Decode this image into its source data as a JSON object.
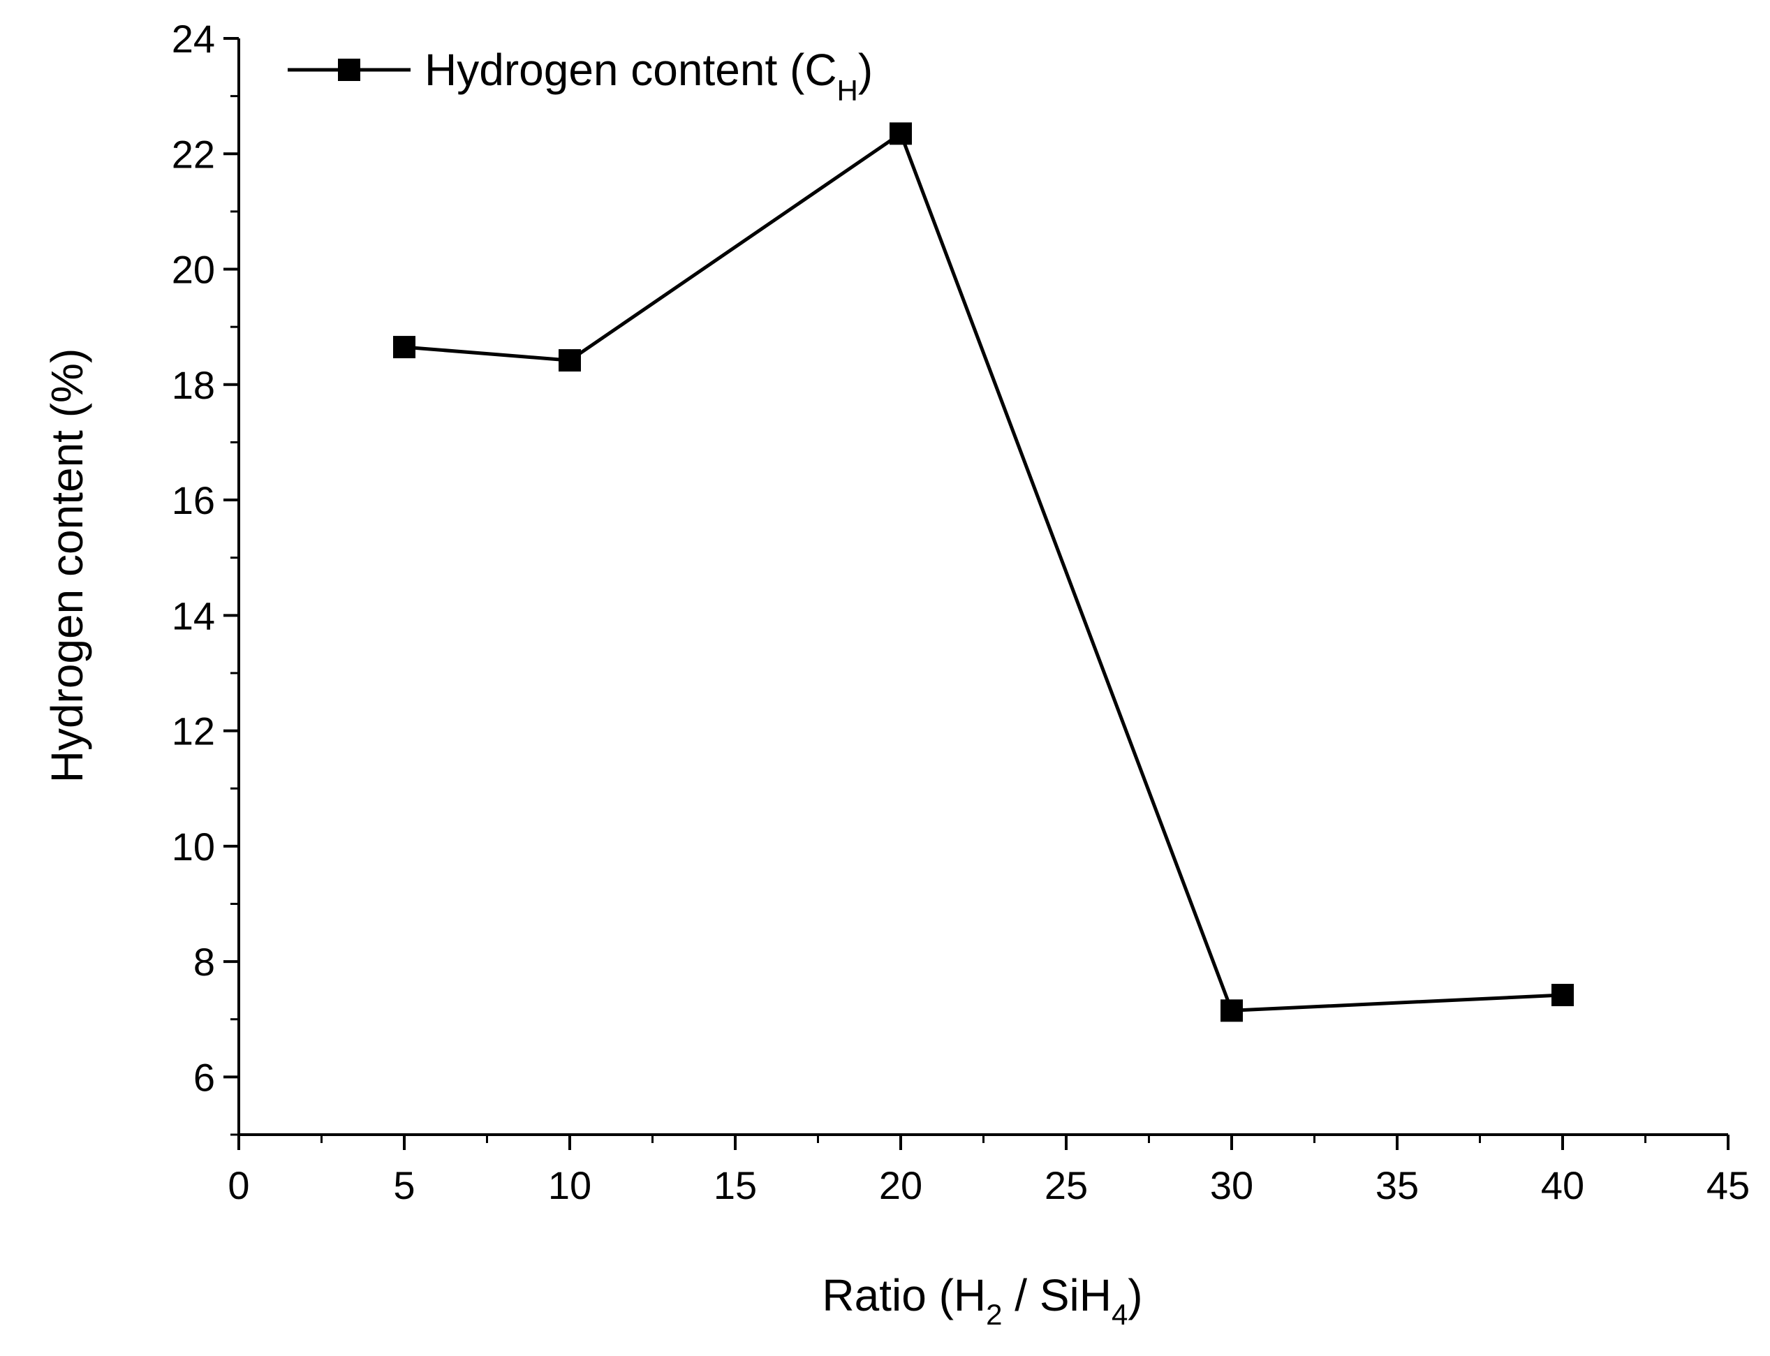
{
  "chart_data": {
    "type": "line",
    "xlabel": {
      "pre": "Ratio (H",
      "sub1": "2",
      "mid": " / SiH",
      "sub2": "4",
      "post": ")"
    },
    "ylabel": "Hydrogen content (%)",
    "xlim": [
      0,
      45
    ],
    "ylim": [
      5,
      24
    ],
    "x_ticks": [
      0,
      5,
      10,
      15,
      20,
      25,
      30,
      35,
      40,
      45
    ],
    "y_ticks": [
      6,
      8,
      10,
      12,
      14,
      16,
      18,
      20,
      22,
      24
    ],
    "x_minor_step": 2.5,
    "y_minor_step": 1,
    "grid": false,
    "legend_position": "top-left",
    "series": [
      {
        "name": {
          "main": "Hydrogen content (C",
          "sub": "H",
          "close": ")"
        },
        "marker": "square",
        "color": "#000000",
        "x": [
          5,
          10,
          20,
          30,
          40
        ],
        "y": [
          18.65,
          18.42,
          22.35,
          7.15,
          7.42
        ]
      }
    ]
  }
}
